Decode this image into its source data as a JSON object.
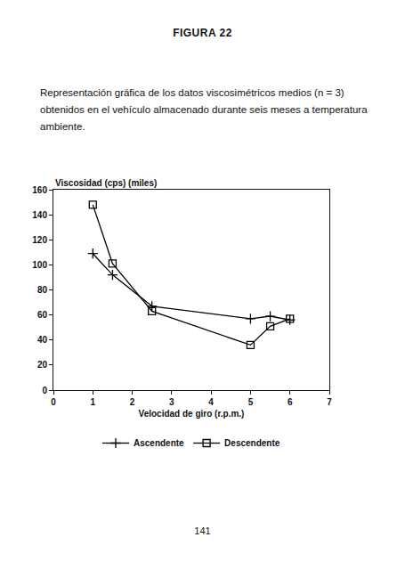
{
  "figure_label": "FIGURA 22",
  "caption": "Representación gráfica de los datos viscosimétricos medios (n = 3) obtenidos en el vehículo almacenado durante seis meses a temperatura ambiente.",
  "page_number": "141",
  "chart_data": {
    "type": "line",
    "y_label": "Viscosidad (cps) (miles)",
    "x_label": "Velocidad de giro (r.p.m.)",
    "x": [
      1,
      1.5,
      2.5,
      5,
      5.5,
      6
    ],
    "series": [
      {
        "name": "Ascendente",
        "color": "#000000",
        "marker": "plus",
        "values": [
          109,
          92,
          67,
          57,
          59,
          56
        ]
      },
      {
        "name": "Descendente",
        "color": "#000000",
        "marker": "square-open",
        "values": [
          148,
          101,
          63,
          36,
          51,
          57
        ]
      }
    ],
    "xlim": [
      0,
      7
    ],
    "xticks": [
      0,
      1,
      2,
      3,
      4,
      5,
      6,
      7
    ],
    "ylim": [
      0,
      160
    ],
    "yticks": [
      0,
      20,
      40,
      60,
      80,
      100,
      120,
      140,
      160
    ],
    "grid": false,
    "legend": "bottom"
  }
}
